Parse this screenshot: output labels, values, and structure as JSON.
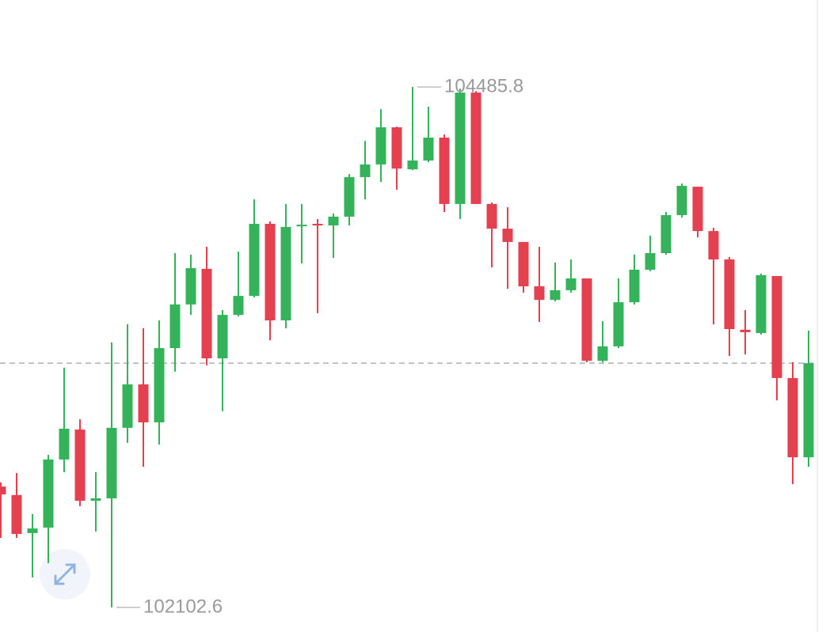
{
  "chart_data": {
    "type": "candlestick",
    "ylim": [
      101990,
      104884
    ],
    "up_color": "#34b35a",
    "down_color": "#e4404f",
    "annotations": [
      "104485.8",
      "102102.6"
    ],
    "open": [
      102656,
      102617,
      102443,
      102468,
      102780,
      102917,
      102591,
      102602,
      102925,
      103124,
      102950,
      103290,
      103490,
      103653,
      103243,
      103442,
      103529,
      103859,
      103417,
      103848,
      103859,
      103852,
      103892,
      104073,
      104131,
      104301,
      104109,
      104149,
      104254,
      103950,
      104460,
      103950,
      103837,
      103776,
      103573,
      103511,
      103555,
      103609,
      103232,
      103298,
      103500,
      103649,
      103725,
      103899,
      104029,
      103826,
      103696,
      103374,
      103359,
      103620,
      103153,
      102790
    ],
    "high": [
      102675,
      102718,
      102530,
      102801,
      103200,
      102964,
      102722,
      103316,
      103399,
      103381,
      103417,
      103725,
      103718,
      103754,
      103464,
      103732,
      103971,
      103870,
      103950,
      103950,
      103881,
      103906,
      104087,
      104239,
      104384,
      104304,
      104485.8,
      104395,
      104268,
      104478,
      104467,
      103957,
      103935,
      103776,
      103754,
      103682,
      103696,
      103609,
      103413,
      103609,
      103718,
      103805,
      103913,
      104044,
      104029,
      103841,
      103707,
      103464,
      103631,
      103620,
      103225,
      103370
    ],
    "low": [
      102421,
      102421,
      102240,
      102305,
      102722,
      102566,
      102450,
      102102.6,
      102856,
      102747,
      102848,
      103182,
      103442,
      103211,
      103001,
      103435,
      103522,
      103326,
      103381,
      103678,
      103450,
      103703,
      103852,
      103971,
      104051,
      104015,
      104105,
      104141,
      103913,
      103881,
      103950,
      103660,
      103562,
      103544,
      103410,
      103504,
      103544,
      103225,
      103225,
      103290,
      103490,
      103642,
      103718,
      103888,
      103797,
      103399,
      103254,
      103261,
      103352,
      103051,
      102667,
      102747
    ],
    "close": [
      102620,
      102439,
      102464,
      102780,
      102921,
      102591,
      102602,
      102925,
      103124,
      102950,
      103290,
      103490,
      103656,
      103243,
      103442,
      103529,
      103859,
      103417,
      103845,
      103855,
      103852,
      103892,
      104073,
      104131,
      104301,
      104112,
      104149,
      104254,
      103950,
      104460,
      103950,
      103837,
      103776,
      103573,
      103511,
      103555,
      103609,
      103232,
      103298,
      103500,
      103649,
      103725,
      103899,
      104033,
      103826,
      103696,
      103377,
      103363,
      103624,
      103153,
      102790,
      103221
    ]
  }
}
